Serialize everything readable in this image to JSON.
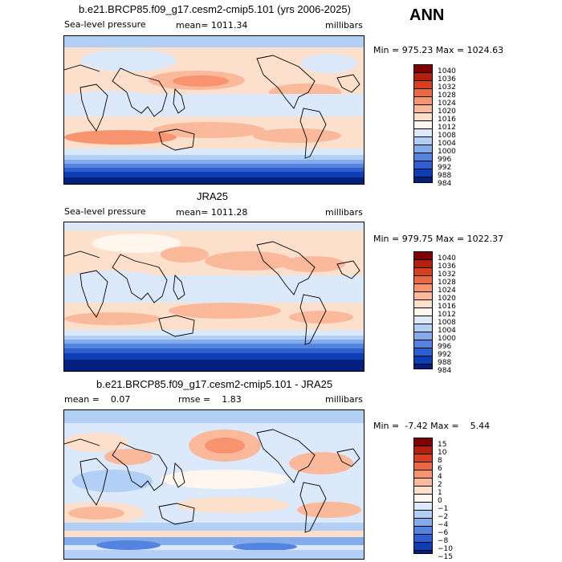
{
  "season": "ANN",
  "palette": {
    "c1040": "#7f0000",
    "c1036": "#b3200e",
    "c1032": "#d63f20",
    "c1028": "#ec6a43",
    "c1024": "#f7946f",
    "c1020": "#fbb99c",
    "c1016": "#fde0cc",
    "c1012": "#fff6ee",
    "c1008": "#dce9fb",
    "c1004": "#b2cff5",
    "c1000": "#84acec",
    "c996": "#5584e0",
    "c992": "#2d5fd2",
    "c988": "#0e3eb6",
    "c984": "#021f7e"
  },
  "panels": [
    {
      "title": "b.e21.BRCP85.f09_g17.cesm2-cmip5.101 (yrs 2006-2025)",
      "left_label": "Sea-level pressure",
      "center_label": "mean= 1011.34",
      "right_label": "millibars",
      "minmax": "Min = 975.23 Max = 1024.63",
      "colorbar_labels": [
        "1040",
        "1036",
        "1032",
        "1028",
        "1024",
        "1020",
        "1016",
        "1012",
        "1008",
        "1004",
        "1000",
        "996",
        "992",
        "988",
        "984"
      ]
    },
    {
      "title": "JRA25",
      "left_label": "Sea-level pressure",
      "center_label": "mean= 1011.28",
      "right_label": "millibars",
      "minmax": "Min = 979.75 Max = 1022.37",
      "colorbar_labels": [
        "1040",
        "1036",
        "1032",
        "1028",
        "1024",
        "1020",
        "1016",
        "1012",
        "1008",
        "1004",
        "1000",
        "996",
        "992",
        "988",
        "984"
      ]
    },
    {
      "title": "b.e21.BRCP85.f09_g17.cesm2-cmip5.101 - JRA25",
      "left_label": "mean =    0.07",
      "center_label": "rmse =    1.83",
      "right_label": "millibars",
      "minmax": "Min =  -7.42 Max =    5.44",
      "colorbar_labels": [
        "15",
        "10",
        "8",
        "6",
        "4",
        "2",
        "1",
        "0",
        "−1",
        "−2",
        "−4",
        "−6",
        "−8",
        "−10",
        "−15"
      ]
    }
  ],
  "chart_data": [
    {
      "type": "heatmap",
      "title": "b.e21.BRCP85.f09_g17.cesm2-cmip5.101 (yrs 2006-2025)",
      "variable": "Sea-level pressure",
      "units": "millibars",
      "mean": 1011.34,
      "min": 975.23,
      "max": 1024.63,
      "levels": [
        984,
        988,
        992,
        996,
        1000,
        1004,
        1008,
        1012,
        1016,
        1020,
        1024,
        1028,
        1032,
        1036,
        1040
      ]
    },
    {
      "type": "heatmap",
      "title": "JRA25",
      "variable": "Sea-level pressure",
      "units": "millibars",
      "mean": 1011.28,
      "min": 979.75,
      "max": 1022.37,
      "levels": [
        984,
        988,
        992,
        996,
        1000,
        1004,
        1008,
        1012,
        1016,
        1020,
        1024,
        1028,
        1032,
        1036,
        1040
      ]
    },
    {
      "type": "heatmap",
      "title": "b.e21.BRCP85.f09_g17.cesm2-cmip5.101 - JRA25",
      "units": "millibars",
      "mean": 0.07,
      "rmse": 1.83,
      "min": -7.42,
      "max": 5.44,
      "levels": [
        -15,
        -10,
        -8,
        -6,
        -4,
        -2,
        -1,
        0,
        1,
        2,
        4,
        6,
        8,
        10,
        15
      ]
    }
  ]
}
